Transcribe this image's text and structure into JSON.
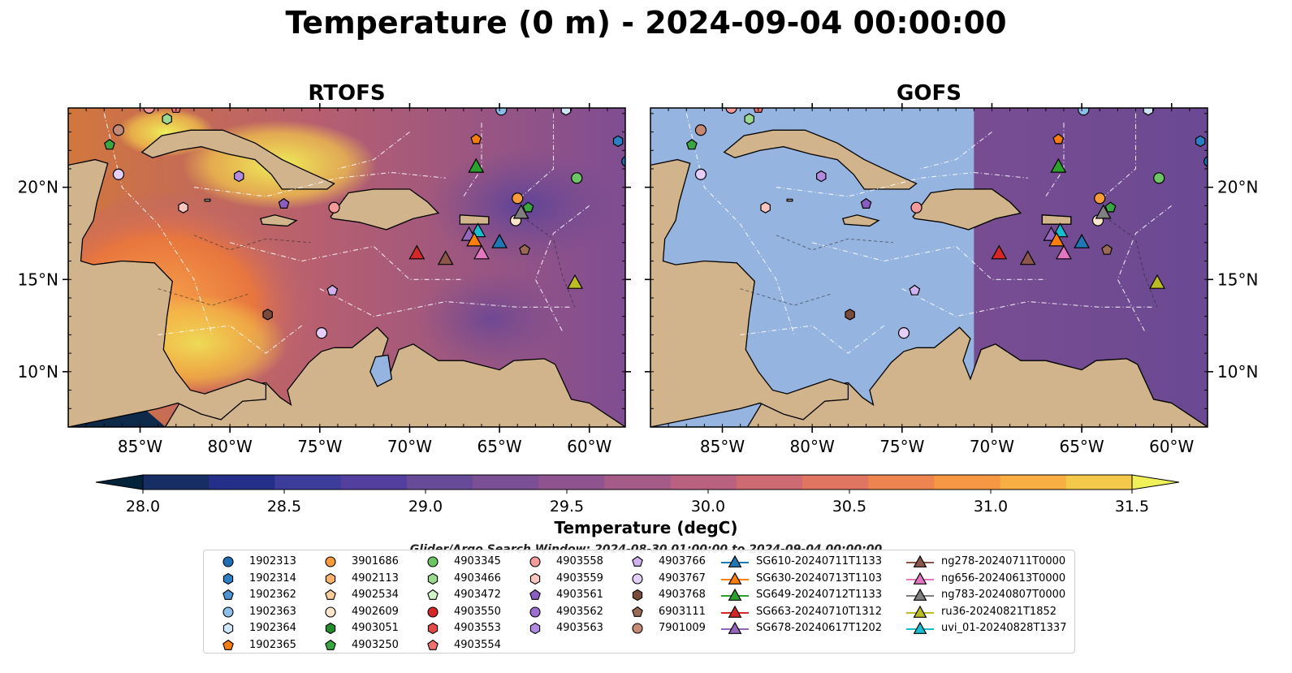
{
  "title": "Temperature (0 m) - 2024-09-04 00:00:00",
  "panels": [
    {
      "name": "RTOFS",
      "masked_lon_max": null
    },
    {
      "name": "GOFS",
      "masked_lon_max": -71.0
    }
  ],
  "map": {
    "lon_range": [
      -89,
      -58
    ],
    "lat_range": [
      7,
      24.3
    ],
    "lon_ticks": [
      {
        "value": -85,
        "label": "85°W"
      },
      {
        "value": -80,
        "label": "80°W"
      },
      {
        "value": -75,
        "label": "75°W"
      },
      {
        "value": -70,
        "label": "70°W"
      },
      {
        "value": -65,
        "label": "65°W"
      },
      {
        "value": -60,
        "label": "60°W"
      }
    ],
    "lat_ticks": [
      {
        "value": 10,
        "label": "10°N"
      },
      {
        "value": 15,
        "label": "15°N"
      },
      {
        "value": 20,
        "label": "20°N"
      }
    ],
    "colors": {
      "land": "#d2b48c",
      "masked": "#96b4e0",
      "ocean_warm": "#e8763e",
      "ocean_cool": "#6b4a93",
      "frame": "#000000"
    }
  },
  "colorbar": {
    "label": "Temperature (degC)",
    "min": 28.0,
    "max": 31.5,
    "step": 0.25,
    "ticks": [
      {
        "value": 28.0,
        "label": "28.0"
      },
      {
        "value": 28.5,
        "label": "28.5"
      },
      {
        "value": 29.0,
        "label": "29.0"
      },
      {
        "value": 29.5,
        "label": "29.5"
      },
      {
        "value": 30.0,
        "label": "30.0"
      },
      {
        "value": 30.5,
        "label": "30.5"
      },
      {
        "value": 31.0,
        "label": "31.0"
      },
      {
        "value": 31.5,
        "label": "31.5"
      }
    ],
    "colors": [
      "#03233a",
      "#162e63",
      "#232f89",
      "#3c3c9b",
      "#523f9e",
      "#674a98",
      "#7a4f94",
      "#8f5490",
      "#a45b87",
      "#b9617f",
      "#ce6a72",
      "#e07561",
      "#ee8550",
      "#f69744",
      "#f8ae43",
      "#f4c84a",
      "#f0f05a"
    ]
  },
  "legend": {
    "title": "Glider/Argo Search Window: 2024-08-30 01:00:00 to 2024-09-04 00:00:00",
    "columns": [
      [
        {
          "label": "1902313",
          "marker": "circle",
          "color": "#1f6fb4"
        },
        {
          "label": "1902314",
          "marker": "hexagon",
          "color": "#2c7fc2"
        },
        {
          "label": "1902362",
          "marker": "pentagon",
          "color": "#4d94d4"
        },
        {
          "label": "1902363",
          "marker": "circle",
          "color": "#8dbee8"
        },
        {
          "label": "1902364",
          "marker": "hexagon",
          "color": "#cfe6f8"
        },
        {
          "label": "1902365",
          "marker": "pentagon",
          "color": "#f47c10"
        }
      ],
      [
        {
          "label": "3901686",
          "marker": "circle",
          "color": "#f79a3a"
        },
        {
          "label": "4902113",
          "marker": "hexagon",
          "color": "#fbb36d"
        },
        {
          "label": "4902534",
          "marker": "pentagon",
          "color": "#fccf9a"
        },
        {
          "label": "4902609",
          "marker": "circle",
          "color": "#fde6cc"
        },
        {
          "label": "4903051",
          "marker": "hexagon",
          "color": "#238b2c"
        },
        {
          "label": "4903250",
          "marker": "pentagon",
          "color": "#3aa642"
        }
      ],
      [
        {
          "label": "4903345",
          "marker": "circle",
          "color": "#6cc465"
        },
        {
          "label": "4903466",
          "marker": "hexagon",
          "color": "#9ad98f"
        },
        {
          "label": "4903472",
          "marker": "pentagon",
          "color": "#d3f3c8"
        },
        {
          "label": "4903550",
          "marker": "circle",
          "color": "#d62728"
        },
        {
          "label": "4903553",
          "marker": "hexagon",
          "color": "#e34a4a"
        },
        {
          "label": "4903554",
          "marker": "pentagon",
          "color": "#ef7070"
        }
      ],
      [
        {
          "label": "4903558",
          "marker": "circle",
          "color": "#f59a9a"
        },
        {
          "label": "4903559",
          "marker": "hexagon",
          "color": "#fcc6c0"
        },
        {
          "label": "4903561",
          "marker": "pentagon",
          "color": "#8a5ec0"
        },
        {
          "label": "4903562",
          "marker": "circle",
          "color": "#9b6fd0"
        },
        {
          "label": "4903563",
          "marker": "hexagon",
          "color": "#b28ae0"
        }
      ],
      [
        {
          "label": "4903766",
          "marker": "pentagon",
          "color": "#cfb2ef"
        },
        {
          "label": "4903767",
          "marker": "circle",
          "color": "#e4cff8"
        },
        {
          "label": "4903768",
          "marker": "hexagon",
          "color": "#7a4a3a"
        },
        {
          "label": "6903111",
          "marker": "pentagon",
          "color": "#9a6a56"
        },
        {
          "label": "7901009",
          "marker": "circle",
          "color": "#c58a76"
        }
      ],
      [
        {
          "label": "SG610-20240711T1133",
          "marker": "triangle-line",
          "color": "#1f77b4"
        },
        {
          "label": "SG630-20240713T1103",
          "marker": "triangle-line",
          "color": "#ff7f0e"
        },
        {
          "label": "SG649-20240712T1133",
          "marker": "triangle-line",
          "color": "#2ca02c"
        },
        {
          "label": "SG663-20240710T1312",
          "marker": "triangle-line",
          "color": "#d62728"
        },
        {
          "label": "SG678-20240617T1202",
          "marker": "triangle-line",
          "color": "#9467bd"
        }
      ],
      [
        {
          "label": "ng278-20240711T0000",
          "marker": "triangle-line",
          "color": "#8c564b"
        },
        {
          "label": "ng656-20240613T0000",
          "marker": "triangle-line",
          "color": "#e377c2"
        },
        {
          "label": "ng783-20240807T0000",
          "marker": "triangle-line",
          "color": "#7f7f7f"
        },
        {
          "label": "ru36-20240821T1852",
          "marker": "triangle-line",
          "color": "#bcbd22"
        },
        {
          "label": "uvi_01-20240828T1337",
          "marker": "triangle-line",
          "color": "#17becf"
        }
      ]
    ]
  },
  "markers": [
    {
      "id": "4903554",
      "lon": -83.0,
      "lat": 24.3,
      "marker": "pentagon",
      "color": "#ef7070"
    },
    {
      "id": "4903558",
      "lon": -84.5,
      "lat": 24.3,
      "marker": "circle",
      "color": "#f59a9a"
    },
    {
      "id": "4903466",
      "lon": -83.5,
      "lat": 23.7,
      "marker": "hexagon",
      "color": "#9ad98f"
    },
    {
      "id": "7901009",
      "lon": -86.2,
      "lat": 23.1,
      "marker": "circle",
      "color": "#c58a76"
    },
    {
      "id": "4903250",
      "lon": -86.7,
      "lat": 22.3,
      "marker": "pentagon",
      "color": "#3aa642"
    },
    {
      "id": "4903767",
      "lon": -86.2,
      "lat": 20.7,
      "marker": "circle",
      "color": "#e4cff8"
    },
    {
      "id": "4903563",
      "lon": -79.5,
      "lat": 20.6,
      "marker": "hexagon",
      "color": "#b28ae0"
    },
    {
      "id": "4903559",
      "lon": -82.6,
      "lat": 18.9,
      "marker": "hexagon",
      "color": "#fcc6c0"
    },
    {
      "id": "4903561",
      "lon": -77.0,
      "lat": 19.1,
      "marker": "pentagon",
      "color": "#8a5ec0"
    },
    {
      "id": "4903558",
      "lon": -74.2,
      "lat": 18.9,
      "marker": "circle",
      "color": "#f59a9a"
    },
    {
      "id": "1902365",
      "lon": -66.3,
      "lat": 22.6,
      "marker": "pentagon",
      "color": "#f47c10"
    },
    {
      "id": "1902363",
      "lon": -64.9,
      "lat": 24.2,
      "marker": "circle",
      "color": "#8dbee8"
    },
    {
      "id": "1902364",
      "lon": -61.3,
      "lat": 24.2,
      "marker": "hexagon",
      "color": "#cfe6f8"
    },
    {
      "id": "1902314",
      "lon": -58.4,
      "lat": 22.5,
      "marker": "hexagon",
      "color": "#2c7fc2"
    },
    {
      "id": "1902313",
      "lon": -57.9,
      "lat": 21.4,
      "marker": "circle",
      "color": "#1f6fb4"
    },
    {
      "id": "4903345",
      "lon": -60.7,
      "lat": 20.5,
      "marker": "circle",
      "color": "#6cc465"
    },
    {
      "id": "3901686",
      "lon": -64.0,
      "lat": 19.4,
      "marker": "circle",
      "color": "#f79a3a"
    },
    {
      "id": "4903250",
      "lon": -63.4,
      "lat": 18.9,
      "marker": "pentagon",
      "color": "#3aa642"
    },
    {
      "id": "4902609",
      "lon": -64.1,
      "lat": 18.2,
      "marker": "circle",
      "color": "#fde6cc"
    },
    {
      "id": "6903111",
      "lon": -63.6,
      "lat": 16.6,
      "marker": "pentagon",
      "color": "#9a6a56"
    },
    {
      "id": "4903766",
      "lon": -74.3,
      "lat": 14.4,
      "marker": "pentagon",
      "color": "#cfb2ef"
    },
    {
      "id": "4903768",
      "lon": -77.9,
      "lat": 13.1,
      "marker": "hexagon",
      "color": "#7a4a3a"
    },
    {
      "id": "4903767",
      "lon": -74.9,
      "lat": 12.1,
      "marker": "circle",
      "color": "#e4cff8"
    },
    {
      "id": "SG649-20240712T1133",
      "lon": -66.3,
      "lat": 21.1,
      "marker": "triangle",
      "color": "#2ca02c"
    },
    {
      "id": "ng783-20240807T0000",
      "lon": -63.8,
      "lat": 18.6,
      "marker": "triangle",
      "color": "#7f7f7f"
    },
    {
      "id": "uvi_01-20240828T1337",
      "lon": -66.2,
      "lat": 17.6,
      "marker": "triangle",
      "color": "#17becf"
    },
    {
      "id": "SG678-20240617T1202",
      "lon": -66.7,
      "lat": 17.4,
      "marker": "triangle",
      "color": "#9467bd"
    },
    {
      "id": "SG630-20240713T1103",
      "lon": -66.4,
      "lat": 17.1,
      "marker": "triangle",
      "color": "#ff7f0e"
    },
    {
      "id": "SG610-20240711T1133",
      "lon": -65.0,
      "lat": 17.0,
      "marker": "triangle",
      "color": "#1f77b4"
    },
    {
      "id": "ng656-20240613T0000",
      "lon": -66.0,
      "lat": 16.4,
      "marker": "triangle",
      "color": "#e377c2"
    },
    {
      "id": "SG663-20240710T1312",
      "lon": -69.6,
      "lat": 16.4,
      "marker": "triangle",
      "color": "#d62728"
    },
    {
      "id": "ng278-20240711T0000",
      "lon": -68.0,
      "lat": 16.1,
      "marker": "triangle",
      "color": "#8c564b"
    },
    {
      "id": "ru36-20240821T1852",
      "lon": -60.8,
      "lat": 14.8,
      "marker": "triangle",
      "color": "#bcbd22"
    }
  ],
  "land": [
    {
      "name": "south-america",
      "coords": [
        [
          -89,
          7
        ],
        [
          -83.6,
          7
        ],
        [
          -82.8,
          8.3
        ],
        [
          -81.5,
          8.6
        ],
        [
          -80,
          8.2
        ],
        [
          -79.5,
          9.2
        ],
        [
          -78,
          9.4
        ],
        [
          -77.2,
          8.6
        ],
        [
          -76.6,
          8.2
        ],
        [
          -76.8,
          9.0
        ],
        [
          -75.6,
          10.5
        ],
        [
          -74.9,
          11.1
        ],
        [
          -74.2,
          11.3
        ],
        [
          -73.2,
          11.3
        ],
        [
          -71.8,
          12.4
        ],
        [
          -71.2,
          11.8
        ],
        [
          -71.6,
          10.6
        ],
        [
          -71.2,
          9.6
        ],
        [
          -70.6,
          11.2
        ],
        [
          -69.8,
          11.5
        ],
        [
          -68.4,
          10.6
        ],
        [
          -67,
          10.6
        ],
        [
          -65,
          10.1
        ],
        [
          -64.2,
          10.6
        ],
        [
          -62.5,
          10.7
        ],
        [
          -61.9,
          10.4
        ],
        [
          -61,
          8.5
        ],
        [
          -60,
          8.3
        ],
        [
          -58,
          7.0
        ],
        [
          -58,
          7
        ],
        [
          -89,
          7
        ]
      ]
    },
    {
      "name": "central-america",
      "coords": [
        [
          -89,
          21.2
        ],
        [
          -87.5,
          21.5
        ],
        [
          -86.8,
          21.3
        ],
        [
          -87.4,
          19.2
        ],
        [
          -87.6,
          18.2
        ],
        [
          -88.2,
          17.2
        ],
        [
          -88.3,
          16.0
        ],
        [
          -87.6,
          15.8
        ],
        [
          -86,
          16.0
        ],
        [
          -84.2,
          15.9
        ],
        [
          -83.2,
          14.9
        ],
        [
          -83.5,
          13.0
        ],
        [
          -83.7,
          11.2
        ],
        [
          -83.0,
          10.0
        ],
        [
          -82.2,
          9.0
        ],
        [
          -81.4,
          8.8
        ],
        [
          -80.2,
          9.2
        ],
        [
          -79.0,
          9.6
        ],
        [
          -78.0,
          9.3
        ],
        [
          -78.0,
          8.5
        ],
        [
          -79.3,
          8.4
        ],
        [
          -80.5,
          7.4
        ],
        [
          -81.6,
          7.7
        ],
        [
          -82.9,
          8.3
        ],
        [
          -84.0,
          8.0
        ],
        [
          -89,
          7
        ]
      ]
    },
    {
      "name": "cuba",
      "coords": [
        [
          -84.9,
          21.9
        ],
        [
          -83.8,
          22.8
        ],
        [
          -82.2,
          23.1
        ],
        [
          -80.4,
          23.1
        ],
        [
          -78.6,
          22.4
        ],
        [
          -77.1,
          21.5
        ],
        [
          -75.8,
          20.9
        ],
        [
          -74.2,
          20.2
        ],
        [
          -74.6,
          19.9
        ],
        [
          -77.1,
          19.9
        ],
        [
          -77.7,
          20.7
        ],
        [
          -78.6,
          21.5
        ],
        [
          -80.1,
          21.8
        ],
        [
          -81.6,
          22.2
        ],
        [
          -82.9,
          22.0
        ],
        [
          -84.3,
          21.6
        ]
      ]
    },
    {
      "name": "hispaniola",
      "coords": [
        [
          -74.4,
          18.4
        ],
        [
          -73.4,
          19.7
        ],
        [
          -72.0,
          19.9
        ],
        [
          -70.0,
          19.9
        ],
        [
          -69.0,
          19.2
        ],
        [
          -68.4,
          18.6
        ],
        [
          -69.8,
          18.3
        ],
        [
          -71.3,
          17.7
        ],
        [
          -72.8,
          18.1
        ],
        [
          -74.3,
          18.3
        ]
      ]
    },
    {
      "name": "jamaica",
      "coords": [
        [
          -78.3,
          18.3
        ],
        [
          -77.5,
          18.5
        ],
        [
          -76.3,
          18.2
        ],
        [
          -76.8,
          17.9
        ],
        [
          -78.2,
          18.0
        ]
      ]
    },
    {
      "name": "puerto-rico",
      "coords": [
        [
          -67.2,
          18.5
        ],
        [
          -65.6,
          18.4
        ],
        [
          -65.6,
          18.0
        ],
        [
          -67.2,
          18.0
        ]
      ]
    },
    {
      "name": "caymans",
      "coords": [
        [
          -81.4,
          19.35
        ],
        [
          -81.1,
          19.35
        ],
        [
          -81.1,
          19.25
        ],
        [
          -81.4,
          19.25
        ]
      ]
    },
    {
      "name": "lake-maracaibo",
      "coords": [
        [
          -71.9,
          10.8
        ],
        [
          -71.2,
          10.9
        ],
        [
          -71.0,
          9.6
        ],
        [
          -71.8,
          9.2
        ],
        [
          -72.2,
          10.0
        ]
      ],
      "water": true
    }
  ]
}
